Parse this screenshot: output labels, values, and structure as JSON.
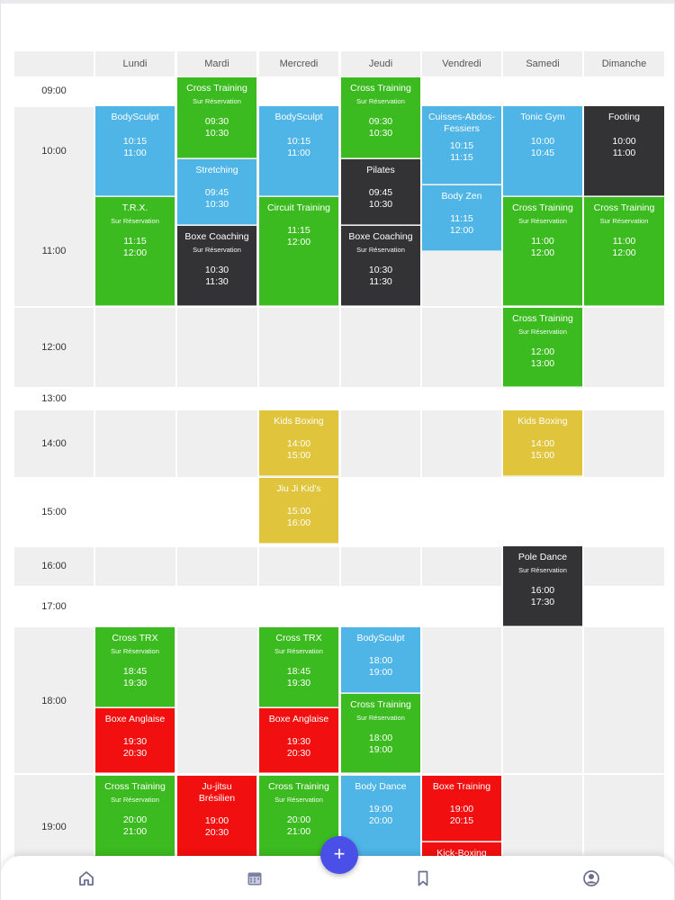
{
  "days": [
    "Lundi",
    "Mardi",
    "Mercredi",
    "Jeudi",
    "Vendredi",
    "Samedi",
    "Dimanche"
  ],
  "times": [
    "09:00",
    "10:00",
    "11:00",
    "12:00",
    "13:00",
    "14:00",
    "15:00",
    "16:00",
    "17:00",
    "18:00",
    "19:00"
  ],
  "events": [
    {
      "id": "lun-bodysculpt",
      "title": "BodySculpt",
      "sub": "",
      "start": "10:15",
      "end": "11:00"
    },
    {
      "id": "lun-trx",
      "title": "T.R.X.",
      "sub": "Sur Réservation",
      "start": "11:15",
      "end": "12:00"
    },
    {
      "id": "lun-crosstrx",
      "title": "Cross TRX",
      "sub": "Sur Réservation",
      "start": "18:45",
      "end": "19:30"
    },
    {
      "id": "lun-boxe",
      "title": "Boxe Anglaise",
      "sub": "",
      "start": "19:30",
      "end": "20:30"
    },
    {
      "id": "lun-cross",
      "title": "Cross Training",
      "sub": "Sur Réservation",
      "start": "20:00",
      "end": "21:00"
    },
    {
      "id": "mar-cross",
      "title": "Cross Training",
      "sub": "Sur Réservation",
      "start": "09:30",
      "end": "10:30"
    },
    {
      "id": "mar-stretch",
      "title": "Stretching",
      "sub": "",
      "start": "09:45",
      "end": "10:30"
    },
    {
      "id": "mar-boxecoach",
      "title": "Boxe Coaching",
      "sub": "Sur Réservation",
      "start": "10:30",
      "end": "11:30"
    },
    {
      "id": "mar-jujitsu",
      "title": "Ju-jitsu Brésilien",
      "sub": "",
      "start": "19:00",
      "end": "20:30"
    },
    {
      "id": "mer-bodysculpt",
      "title": "BodySculpt",
      "sub": "",
      "start": "10:15",
      "end": "11:00"
    },
    {
      "id": "mer-circuit",
      "title": "Circuit Training",
      "sub": "",
      "start": "11:15",
      "end": "12:00"
    },
    {
      "id": "mer-kids",
      "title": "Kids Boxing",
      "sub": "",
      "start": "14:00",
      "end": "15:00"
    },
    {
      "id": "mer-jiujikid",
      "title": "Jiu Ji Kid's",
      "sub": "",
      "start": "15:00",
      "end": "16:00"
    },
    {
      "id": "mer-crosstrx",
      "title": "Cross TRX",
      "sub": "Sur Réservation",
      "start": "18:45",
      "end": "19:30"
    },
    {
      "id": "mer-boxe",
      "title": "Boxe Anglaise",
      "sub": "",
      "start": "19:30",
      "end": "20:30"
    },
    {
      "id": "mer-cross",
      "title": "Cross Training",
      "sub": "Sur Réservation",
      "start": "20:00",
      "end": "21:00"
    },
    {
      "id": "jeu-cross",
      "title": "Cross Training",
      "sub": "Sur Réservation",
      "start": "09:30",
      "end": "10:30"
    },
    {
      "id": "jeu-pilates",
      "title": "Pilates",
      "sub": "",
      "start": "09:45",
      "end": "10:30"
    },
    {
      "id": "jeu-boxecoach",
      "title": "Boxe Coaching",
      "sub": "Sur Réservation",
      "start": "10:30",
      "end": "11:30"
    },
    {
      "id": "jeu-bodysculpt",
      "title": "BodySculpt",
      "sub": "",
      "start": "18:00",
      "end": "19:00"
    },
    {
      "id": "jeu-cross",
      "title": "Cross Training",
      "sub": "Sur Réservation",
      "start": "18:00",
      "end": "19:00"
    },
    {
      "id": "jeu-bodydance",
      "title": "Body Dance",
      "sub": "",
      "start": "19:00",
      "end": "20:00"
    },
    {
      "id": "ven-cuisses",
      "title": "Cuisses-Abdos-Fessiers",
      "sub": "",
      "start": "10:15",
      "end": "11:15"
    },
    {
      "id": "ven-bodyzen",
      "title": "Body Zen",
      "sub": "",
      "start": "11:15",
      "end": "12:00"
    },
    {
      "id": "ven-boxetraining",
      "title": "Boxe Training",
      "sub": "",
      "start": "19:00",
      "end": "20:15"
    },
    {
      "id": "ven-kick",
      "title": "Kick-Boxing",
      "sub": "",
      "start": "",
      "end": ""
    },
    {
      "id": "sam-tonic",
      "title": "Tonic Gym",
      "sub": "",
      "start": "10:00",
      "end": "10:45"
    },
    {
      "id": "sam-cross1",
      "title": "Cross Training",
      "sub": "Sur Réservation",
      "start": "11:00",
      "end": "12:00"
    },
    {
      "id": "sam-cross2",
      "title": "Cross Training",
      "sub": "Sur Réservation",
      "start": "12:00",
      "end": "13:00"
    },
    {
      "id": "sam-kids",
      "title": "Kids Boxing",
      "sub": "",
      "start": "14:00",
      "end": "15:00"
    },
    {
      "id": "sam-pole",
      "title": "Pole Dance",
      "sub": "Sur Réservation",
      "start": "16:00",
      "end": "17:30"
    },
    {
      "id": "dim-footing",
      "title": "Footing",
      "sub": "",
      "start": "10:00",
      "end": "11:00"
    },
    {
      "id": "dim-cross",
      "title": "Cross Training",
      "sub": "Sur Réservation",
      "start": "11:00",
      "end": "12:00"
    }
  ],
  "colors": {
    "green": "#3bbb1f",
    "blue": "#4fb4e6",
    "dark": "#333335",
    "yellow": "#e0c43c",
    "red": "#f20f0f",
    "fab": "#4a4fe8"
  },
  "fab": {
    "icon": "plus-icon",
    "label": "+"
  },
  "nav": [
    {
      "name": "home-icon"
    },
    {
      "name": "calendar-icon"
    },
    {
      "name": "bookmark-icon"
    },
    {
      "name": "profile-icon"
    }
  ]
}
